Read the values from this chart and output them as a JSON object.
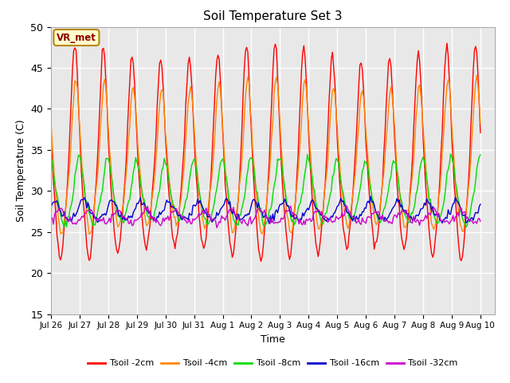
{
  "title": "Soil Temperature Set 3",
  "xlabel": "Time",
  "ylabel": "Soil Temperature (C)",
  "ylim": [
    15,
    50
  ],
  "background_color": "#e8e8e8",
  "plot_bg": "#e8e8e8",
  "grid_color": "white",
  "annotation_text": "VR_met",
  "annotation_color": "#8b0000",
  "annotation_bg": "#ffffcc",
  "annotation_border": "#b8860b",
  "series": [
    {
      "label": "Tsoil -2cm",
      "color": "#ff0000",
      "amplitude": 12.5,
      "mean": 33.0,
      "phase_delay": 0.0,
      "depth_damp": 1.0
    },
    {
      "label": "Tsoil -4cm",
      "color": "#ff8800",
      "amplitude": 9.0,
      "mean": 33.0,
      "phase_delay": 0.04,
      "depth_damp": 0.85
    },
    {
      "label": "Tsoil -8cm",
      "color": "#00dd00",
      "amplitude": 4.0,
      "mean": 29.5,
      "phase_delay": 0.15,
      "depth_damp": 0.75
    },
    {
      "label": "Tsoil -16cm",
      "color": "#0000cc",
      "amplitude": 1.2,
      "mean": 27.5,
      "phase_delay": 0.3,
      "depth_damp": 0.6
    },
    {
      "label": "Tsoil -32cm",
      "color": "#cc00cc",
      "amplitude": 0.8,
      "mean": 26.8,
      "phase_delay": 0.5,
      "depth_damp": 0.5
    }
  ],
  "xtick_labels": [
    "Jul 26",
    "Jul 27",
    "Jul 28",
    "Jul 29",
    "Jul 30",
    "Jul 31",
    "Aug 1",
    "Aug 2",
    "Aug 3",
    "Aug 4",
    "Aug 5",
    "Aug 6",
    "Aug 7",
    "Aug 8",
    "Aug 9",
    "Aug 10"
  ],
  "xtick_positions": [
    0,
    1,
    2,
    3,
    4,
    5,
    6,
    7,
    8,
    9,
    10,
    11,
    12,
    13,
    14,
    15
  ],
  "ytick_positions": [
    15,
    20,
    25,
    30,
    35,
    40,
    45,
    50
  ],
  "legend_labels": [
    "Tsoil -2cm",
    "Tsoil -4cm",
    "Tsoil -8cm",
    "Tsoil -16cm",
    "Tsoil -32cm"
  ],
  "legend_colors": [
    "#ff0000",
    "#ff8800",
    "#00dd00",
    "#0000cc",
    "#cc00cc"
  ]
}
